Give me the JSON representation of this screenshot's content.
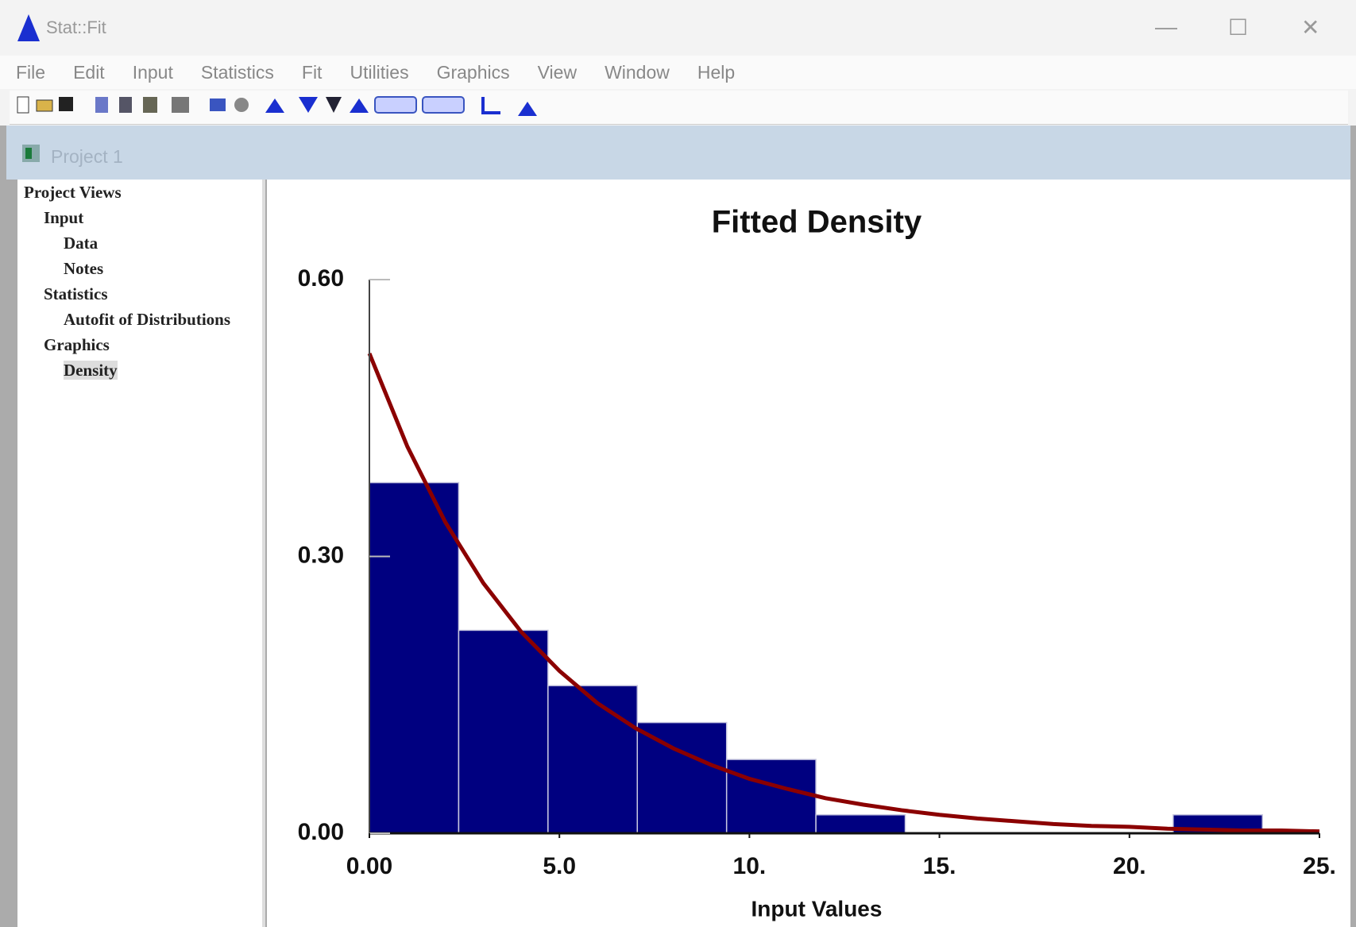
{
  "window": {
    "title": "Stat::Fit",
    "menu": [
      "File",
      "Edit",
      "Input",
      "Statistics",
      "Fit",
      "Utilities",
      "Graphics",
      "View",
      "Window",
      "Help"
    ]
  },
  "project": {
    "title": "Project 1",
    "tree": [
      "Project Views",
      "Input",
      "Data",
      "Notes",
      "Statistics",
      "Autofit of Distributions",
      "Graphics",
      "Density"
    ]
  },
  "chart_data": {
    "type": "histogram",
    "title": "Fitted Density",
    "xlabel": "Input Values",
    "bins": [
      0,
      2.35,
      4.7,
      7.05,
      9.4,
      11.75,
      14.1,
      16.45,
      18.8,
      21.15,
      23.5
    ],
    "values": [
      0.38,
      0.22,
      0.16,
      0.12,
      0.08,
      0.02,
      0,
      0,
      0,
      0.02
    ],
    "color": "#000080",
    "fitted_curve": {
      "color": "#8b0000",
      "x": [
        0,
        1,
        2,
        3,
        4,
        5,
        6,
        7,
        8,
        9,
        10,
        11,
        12,
        13,
        14,
        15,
        16,
        17,
        18,
        19,
        20,
        21,
        22,
        23,
        24,
        25
      ],
      "values": [
        0.52,
        0.419,
        0.337,
        0.271,
        0.218,
        0.176,
        0.141,
        0.114,
        0.092,
        0.074,
        0.059,
        0.048,
        0.038,
        0.031,
        0.025,
        0.02,
        0.016,
        0.013,
        0.01,
        0.008,
        0.007,
        0.005,
        0.004,
        0.003,
        0.003,
        0.002
      ]
    },
    "xlim": [
      0,
      25
    ],
    "xticks": [
      {
        "value": 0,
        "label": "0.00"
      },
      {
        "value": 5,
        "label": "5.0"
      },
      {
        "value": 10,
        "label": "10."
      },
      {
        "value": 15,
        "label": "15."
      },
      {
        "value": 20,
        "label": "20."
      },
      {
        "value": 25,
        "label": "25."
      }
    ],
    "ylim": [
      0,
      0.6
    ],
    "yticks": [
      {
        "value": 0,
        "label": "0.00"
      },
      {
        "value": 0.3,
        "label": "0.30"
      },
      {
        "value": 0.6,
        "label": "0.60"
      }
    ]
  }
}
